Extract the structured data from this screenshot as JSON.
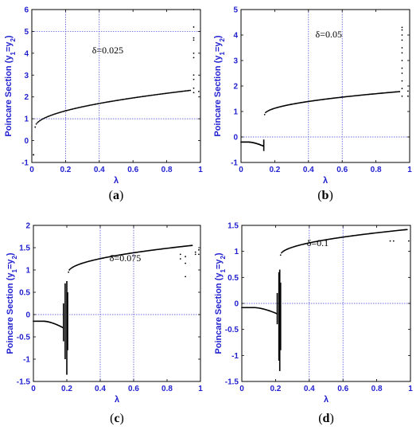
{
  "chart_data": [
    {
      "id": "a",
      "type": "scatter",
      "caption": "(a)",
      "annotation": "δ=0.025",
      "xlabel": "λ",
      "ylabel": "Poincare Section (y1=y2)",
      "xlim": [
        0,
        1
      ],
      "ylim": [
        -1,
        6
      ],
      "xticks": [
        0,
        0.2,
        0.4,
        0.6,
        0.8,
        1
      ],
      "yticks": [
        -1,
        0,
        1,
        2,
        3,
        4,
        5,
        6
      ],
      "xtick_labels": [
        "0",
        "0.2",
        "0.4",
        "0.6",
        "0.8",
        "1"
      ],
      "ytick_labels": [
        "-1",
        "0",
        "1",
        "2",
        "3",
        "4",
        "5",
        "6"
      ],
      "grid": "partial",
      "branches": [
        {
          "x0": 0.02,
          "x1": 0.94,
          "y0": 0.62,
          "y1": 2.3,
          "shape": "sqrt"
        }
      ],
      "clusters": [
        {
          "x": 0.96,
          "y_values": [
            2.2,
            2.4,
            2.8,
            3.0,
            3.8,
            4.0,
            4.6,
            4.7,
            5.2,
            6.0
          ]
        },
        {
          "x": 0.99,
          "y_values": [
            2.25
          ]
        }
      ],
      "isolated": [
        {
          "x": 0.01,
          "y": -0.65
        }
      ],
      "gridlines": {
        "x": [
          0.2,
          0.4
        ],
        "y": [
          1,
          5
        ]
      }
    },
    {
      "id": "b",
      "type": "scatter",
      "caption": "(b)",
      "annotation": "δ=0.05",
      "xlabel": "λ",
      "ylabel": "Poincare Section (y1=y2)",
      "xlim": [
        0,
        1
      ],
      "ylim": [
        -1,
        5
      ],
      "xticks": [
        0,
        0.2,
        0.4,
        0.6,
        0.8,
        1
      ],
      "yticks": [
        -1,
        0,
        1,
        2,
        3,
        4,
        5
      ],
      "xtick_labels": [
        "0",
        "0.2",
        "0.4",
        "0.6",
        "0.8",
        "1"
      ],
      "ytick_labels": [
        "-1",
        "0",
        "1",
        "2",
        "3",
        "4",
        "5"
      ],
      "grid": "partial",
      "branches": [
        {
          "x0": 0.14,
          "x1": 0.94,
          "y0": 0.88,
          "y1": 1.78,
          "shape": "sqrt"
        },
        {
          "x0": 0.0,
          "x1": 0.13,
          "y0": -0.2,
          "y1": -0.35,
          "shape": "hump"
        }
      ],
      "bands": [
        {
          "x": 0.135,
          "y_min": -0.55,
          "y_max": -0.1
        }
      ],
      "clusters": [
        {
          "x": 0.955,
          "y_values": [
            1.6,
            1.9,
            2.2,
            2.5,
            2.7,
            3.0,
            3.3,
            3.5,
            3.8,
            4.0,
            4.2,
            4.3
          ]
        },
        {
          "x": 0.99,
          "y_values": [
            1.6,
            1.8
          ]
        }
      ],
      "gridlines": {
        "x": [
          0.4,
          0.6
        ],
        "y": [
          0
        ]
      }
    },
    {
      "id": "c",
      "type": "scatter",
      "caption": "(c)",
      "annotation": "δ=0.075",
      "xlabel": "λ",
      "ylabel": "Poincare Section (y1=y2)",
      "xlim": [
        0,
        1
      ],
      "ylim": [
        -1.5,
        2
      ],
      "xticks": [
        0,
        0.2,
        0.4,
        0.6,
        0.8,
        1
      ],
      "yticks": [
        -1.5,
        -1,
        -0.5,
        0,
        0.5,
        1,
        1.5,
        2
      ],
      "xtick_labels": [
        "0",
        "0.2",
        "0.4",
        "0.6",
        "0.8",
        "1"
      ],
      "ytick_labels": [
        "-1.5",
        "-1",
        "-0.5",
        "0",
        "0.5",
        "1",
        "1.5",
        "2"
      ],
      "grid": "partial",
      "branches": [
        {
          "x0": 0.21,
          "x1": 0.95,
          "y0": 0.95,
          "y1": 1.55,
          "shape": "sqrt"
        },
        {
          "x0": 0.0,
          "x1": 0.18,
          "y0": -0.15,
          "y1": -0.3,
          "shape": "hump"
        }
      ],
      "bands": [
        {
          "x": 0.18,
          "y_min": -0.6,
          "y_max": 0.25
        },
        {
          "x": 0.19,
          "y_min": -1.0,
          "y_max": 0.7
        },
        {
          "x": 0.2,
          "y_min": -1.35,
          "y_max": 0.75
        },
        {
          "x": 0.205,
          "y_min": -0.8,
          "y_max": 0.5
        }
      ],
      "clusters": [
        {
          "x": 0.88,
          "y_values": [
            1.25,
            1.35
          ]
        },
        {
          "x": 0.91,
          "y_values": [
            0.85,
            1.15,
            1.3
          ]
        },
        {
          "x": 0.97,
          "y_values": [
            1.35,
            1.4
          ]
        },
        {
          "x": 0.99,
          "y_values": [
            1.35,
            1.45
          ]
        }
      ],
      "gridlines": {
        "x": [
          0.4,
          0.6
        ],
        "y": [
          0
        ]
      }
    },
    {
      "id": "d",
      "type": "scatter",
      "caption": "(d)",
      "annotation": "δ=0.1",
      "xlabel": "λ",
      "ylabel": "Poincare Section (y1=y2)",
      "xlim": [
        0,
        1
      ],
      "ylim": [
        -1.5,
        1.5
      ],
      "xticks": [
        0,
        0.2,
        0.4,
        0.6,
        0.8,
        1
      ],
      "yticks": [
        -1.5,
        -1,
        -0.5,
        0,
        0.5,
        1,
        1.5
      ],
      "xtick_labels": [
        "0",
        "0.2",
        "0.4",
        "0.6",
        "0.8",
        "1"
      ],
      "ytick_labels": [
        "-1.5",
        "-1",
        "-0.5",
        "0",
        "0.5",
        "1",
        "1.5"
      ],
      "grid": "partial",
      "branches": [
        {
          "x0": 0.23,
          "x1": 0.98,
          "y0": 0.93,
          "y1": 1.42,
          "shape": "sqrt"
        },
        {
          "x0": 0.0,
          "x1": 0.21,
          "y0": -0.08,
          "y1": -0.2,
          "shape": "hump"
        }
      ],
      "bands": [
        {
          "x": 0.21,
          "y_min": -0.4,
          "y_max": 0.2
        },
        {
          "x": 0.22,
          "y_min": -1.1,
          "y_max": 0.6
        },
        {
          "x": 0.225,
          "y_min": -1.3,
          "y_max": 0.65
        },
        {
          "x": 0.23,
          "y_min": -0.9,
          "y_max": 0.4
        }
      ],
      "clusters": [
        {
          "x": 0.88,
          "y_values": [
            1.2
          ]
        },
        {
          "x": 0.9,
          "y_values": [
            1.2
          ]
        },
        {
          "x": 0.99,
          "y_values": [
            1.2
          ]
        }
      ],
      "gridlines": {
        "x": [
          0.4,
          0.6
        ],
        "y": [
          0
        ]
      }
    }
  ]
}
